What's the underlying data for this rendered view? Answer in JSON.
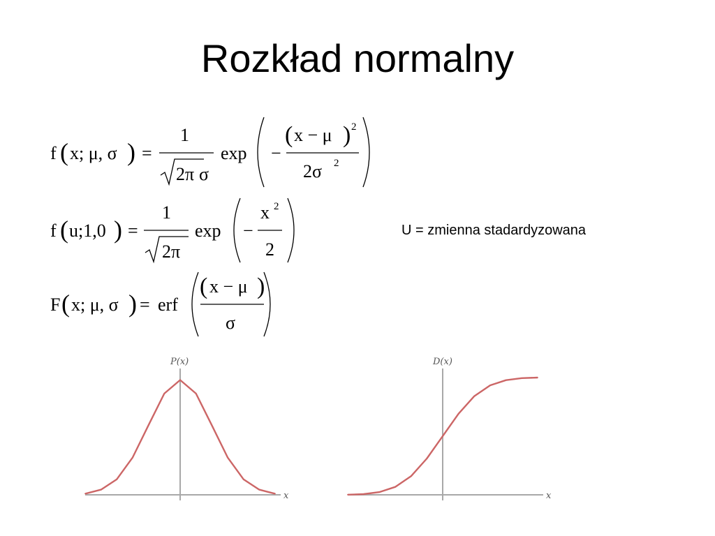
{
  "slide": {
    "title": "Rozkład normalny",
    "note": "U = zmienna stadardyzowana"
  },
  "formulas": {
    "f1": {
      "lhs_fn": "f",
      "lhs_args": "x; μ, σ",
      "eq": "=",
      "num": "1",
      "den_sqrt_arg": "2π",
      "den_tail": "σ",
      "exp": "exp",
      "minus": "−",
      "inner_num": "x − μ",
      "inner_pow": "2",
      "inner_den": "2σ",
      "inner_den_pow": "2"
    },
    "f2": {
      "lhs_fn": "f",
      "lhs_args": "u;1,0",
      "eq": "=",
      "num": "1",
      "den_sqrt_arg": "2π",
      "exp": "exp",
      "minus": "−",
      "inner_num": "x",
      "inner_pow": "2",
      "inner_den": "2"
    },
    "f3": {
      "lhs_fn": "F",
      "lhs_args": "x; μ, σ",
      "eq": "=",
      "fn": "erf",
      "inner_num": "x − μ",
      "inner_den": "σ"
    }
  },
  "chart_data": [
    {
      "type": "line",
      "title": "P(x)",
      "xlabel": "x",
      "x": [
        -3,
        -2.5,
        -2,
        -1.5,
        -1,
        -0.5,
        0,
        0.5,
        1,
        1.5,
        2,
        2.5,
        3
      ],
      "series": [
        {
          "values": [
            0.004,
            0.018,
            0.054,
            0.13,
            0.242,
            0.352,
            0.399,
            0.352,
            0.242,
            0.13,
            0.054,
            0.018,
            0.004
          ]
        }
      ],
      "grid": false,
      "colors": {
        "curve": "#cc6666",
        "axis": "#a8a8a8"
      }
    },
    {
      "type": "line",
      "title": "D(x)",
      "xlabel": "x",
      "x": [
        -3,
        -2.5,
        -2,
        -1.5,
        -1,
        -0.5,
        0,
        0.5,
        1,
        1.5,
        2,
        2.5,
        3
      ],
      "series": [
        {
          "values": [
            0.001,
            0.006,
            0.023,
            0.067,
            0.159,
            0.309,
            0.5,
            0.691,
            0.841,
            0.933,
            0.977,
            0.994,
            0.999
          ]
        }
      ],
      "grid": false,
      "colors": {
        "curve": "#cc6666",
        "axis": "#a8a8a8"
      }
    }
  ]
}
